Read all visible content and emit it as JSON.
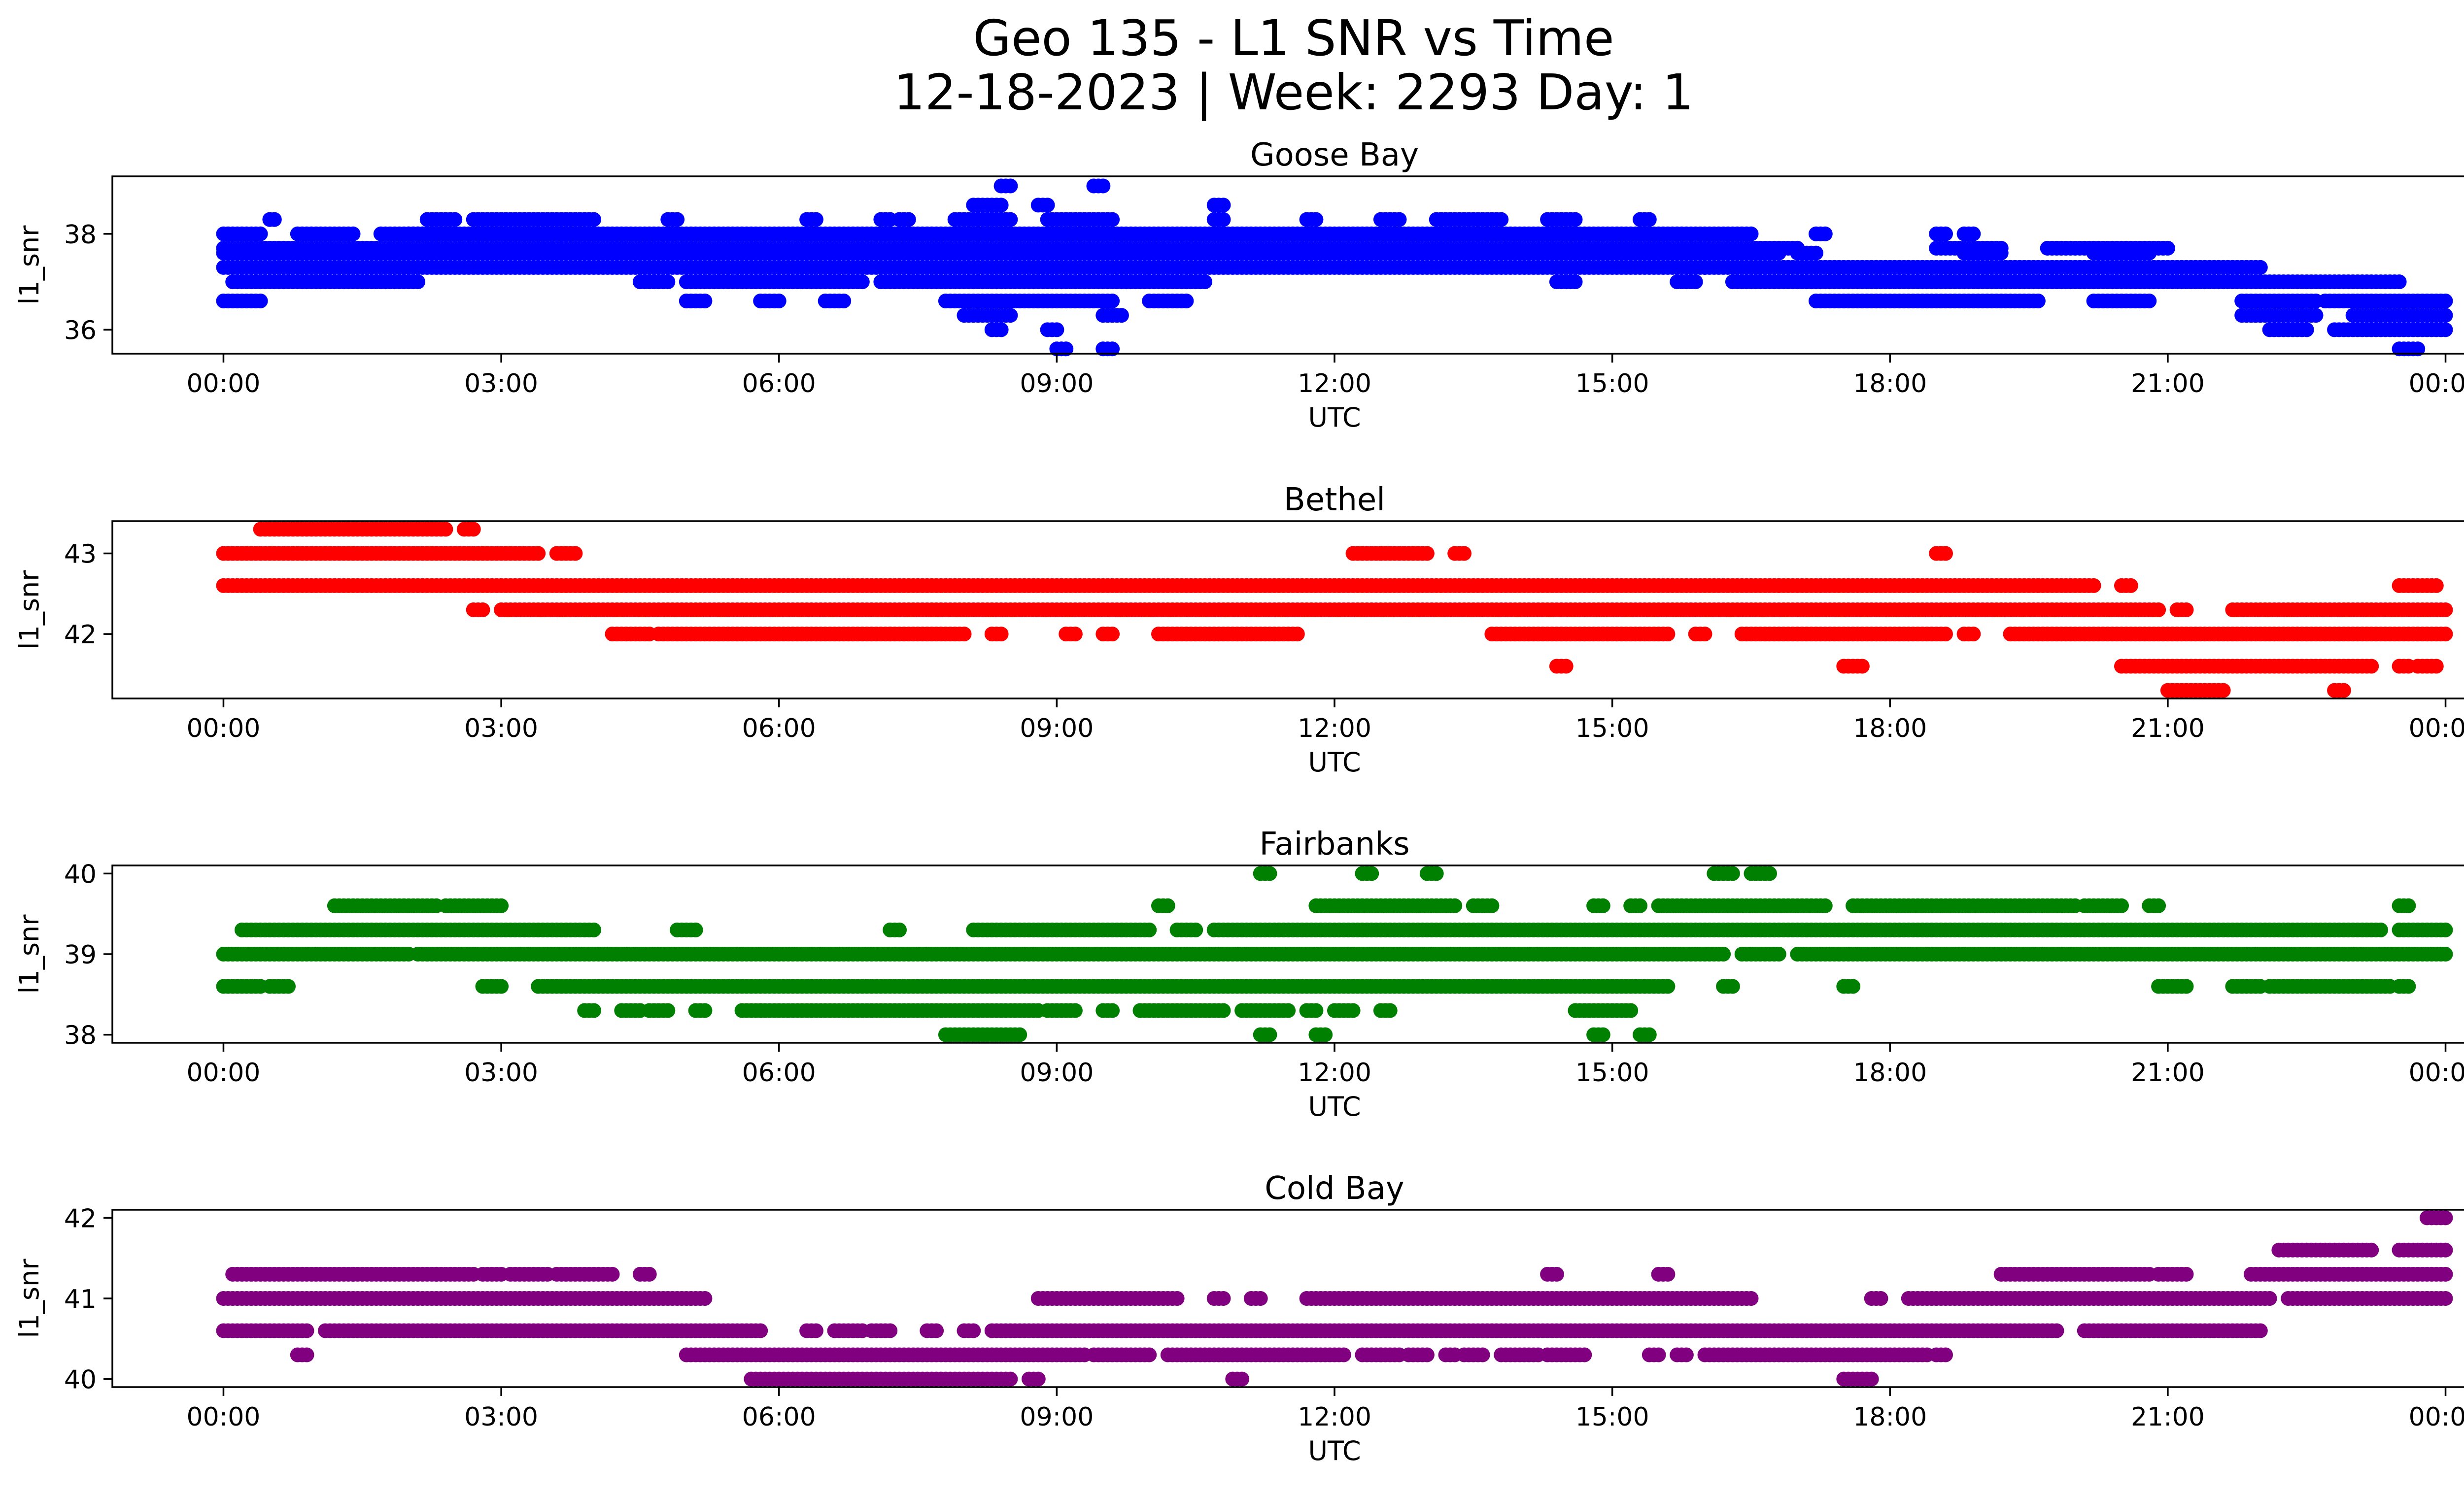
{
  "figure": {
    "title_line1": "Geo 135 - L1 SNR vs Time",
    "title_line2": "12-18-2023 | Week: 2293 Day: 1"
  },
  "chart_data": [
    {
      "type": "scatter",
      "title": "Goose Bay",
      "xlabel": "UTC",
      "ylabel": "l1_snr",
      "color": "#0000ff",
      "xlim": [
        -1.2,
        25.2
      ],
      "ylim": [
        35.5,
        39.2
      ],
      "xticks": [
        "00:00",
        "03:00",
        "06:00",
        "09:00",
        "12:00",
        "15:00",
        "18:00",
        "21:00",
        "00:00"
      ],
      "yticks": [
        36,
        38
      ],
      "bands": [
        {
          "y": 38.3,
          "ranges": [
            [
              0.5,
              0.55
            ],
            [
              2.2,
              2.5
            ],
            [
              2.7,
              4.0
            ],
            [
              4.8,
              4.9
            ],
            [
              6.3,
              6.4
            ],
            [
              7.1,
              7.2
            ],
            [
              7.3,
              7.4
            ],
            [
              7.9,
              8.5
            ],
            [
              8.9,
              9.6
            ],
            [
              10.7,
              10.8
            ],
            [
              11.7,
              11.8
            ],
            [
              12.5,
              12.7
            ],
            [
              13.1,
              13.8
            ],
            [
              14.3,
              14.6
            ],
            [
              15.3,
              15.4
            ]
          ]
        },
        {
          "y": 38.6,
          "ranges": [
            [
              8.1,
              8.4
            ],
            [
              8.8,
              8.9
            ],
            [
              10.7,
              10.8
            ]
          ]
        },
        {
          "y": 39.0,
          "ranges": [
            [
              8.4,
              8.5
            ],
            [
              9.4,
              9.5
            ]
          ]
        },
        {
          "y": 38.0,
          "ranges": [
            [
              0.0,
              0.4
            ],
            [
              0.8,
              1.4
            ],
            [
              1.7,
              2.2
            ],
            [
              2.0,
              16.5
            ],
            [
              17.2,
              17.3
            ],
            [
              18.5,
              18.6
            ],
            [
              18.8,
              18.9
            ]
          ]
        },
        {
          "y": 37.7,
          "ranges": [
            [
              0.0,
              17.0
            ],
            [
              18.5,
              19.2
            ],
            [
              19.7,
              21.0
            ]
          ]
        },
        {
          "y": 37.6,
          "ranges": [
            [
              0.0,
              16.8
            ],
            [
              17.0,
              17.2
            ],
            [
              18.8,
              19.2
            ],
            [
              20.2,
              20.8
            ]
          ]
        },
        {
          "y": 37.3,
          "ranges": [
            [
              0.0,
              16.0
            ],
            [
              16.0,
              19.2
            ],
            [
              19.2,
              22.0
            ]
          ]
        },
        {
          "y": 37.0,
          "ranges": [
            [
              0.1,
              2.1
            ],
            [
              4.5,
              4.8
            ],
            [
              5.0,
              6.9
            ],
            [
              7.1,
              10.6
            ],
            [
              14.4,
              14.6
            ],
            [
              15.7,
              15.9
            ],
            [
              16.3,
              23.5
            ]
          ]
        },
        {
          "y": 36.6,
          "ranges": [
            [
              0.0,
              0.4
            ],
            [
              5.0,
              5.2
            ],
            [
              5.8,
              6.0
            ],
            [
              6.5,
              6.7
            ],
            [
              7.8,
              9.6
            ],
            [
              10.0,
              10.4
            ],
            [
              17.2,
              19.6
            ],
            [
              20.2,
              20.8
            ],
            [
              21.8,
              22.6
            ],
            [
              22.7,
              24.0
            ]
          ]
        },
        {
          "y": 36.3,
          "ranges": [
            [
              8.0,
              8.5
            ],
            [
              9.5,
              9.7
            ],
            [
              21.8,
              22.6
            ],
            [
              23.0,
              24.0
            ]
          ]
        },
        {
          "y": 36.0,
          "ranges": [
            [
              8.3,
              8.4
            ],
            [
              8.9,
              9.0
            ],
            [
              22.1,
              22.5
            ],
            [
              22.8,
              24.0
            ]
          ]
        },
        {
          "y": 35.6,
          "ranges": [
            [
              9.0,
              9.1
            ],
            [
              9.5,
              9.6
            ],
            [
              23.5,
              23.7
            ]
          ]
        }
      ]
    },
    {
      "type": "scatter",
      "title": "Bethel",
      "xlabel": "UTC",
      "ylabel": "l1_snr",
      "color": "#ff0000",
      "xlim": [
        -1.2,
        25.2
      ],
      "ylim": [
        41.2,
        43.4
      ],
      "xticks": [
        "00:00",
        "03:00",
        "06:00",
        "09:00",
        "12:00",
        "15:00",
        "18:00",
        "21:00",
        "00:00"
      ],
      "yticks": [
        42,
        43
      ],
      "bands": [
        {
          "y": 43.3,
          "ranges": [
            [
              0.4,
              2.4
            ],
            [
              2.6,
              2.7
            ]
          ]
        },
        {
          "y": 43.0,
          "ranges": [
            [
              0.0,
              3.4
            ],
            [
              3.6,
              3.8
            ],
            [
              12.2,
              12.5
            ],
            [
              12.5,
              13.0
            ],
            [
              13.3,
              13.4
            ],
            [
              18.5,
              18.6
            ]
          ]
        },
        {
          "y": 42.6,
          "ranges": [
            [
              0.0,
              16.8
            ],
            [
              16.8,
              19.6
            ],
            [
              19.6,
              20.2
            ],
            [
              20.5,
              20.6
            ],
            [
              23.5,
              23.9
            ]
          ]
        },
        {
          "y": 42.3,
          "ranges": [
            [
              2.7,
              2.8
            ],
            [
              3.0,
              20.9
            ],
            [
              21.1,
              21.2
            ],
            [
              21.7,
              24.0
            ]
          ]
        },
        {
          "y": 42.0,
          "ranges": [
            [
              4.2,
              4.6
            ],
            [
              4.7,
              7.2
            ],
            [
              7.2,
              8.0
            ],
            [
              8.3,
              8.4
            ],
            [
              9.1,
              9.2
            ],
            [
              9.5,
              9.6
            ],
            [
              10.1,
              11.6
            ],
            [
              13.7,
              15.6
            ],
            [
              15.9,
              16.0
            ],
            [
              16.4,
              18.6
            ],
            [
              18.8,
              18.9
            ],
            [
              19.3,
              24.0
            ]
          ]
        },
        {
          "y": 41.6,
          "ranges": [
            [
              14.4,
              14.5
            ],
            [
              17.5,
              17.7
            ],
            [
              20.5,
              23.2
            ],
            [
              23.5,
              23.6
            ],
            [
              23.7,
              23.9
            ]
          ]
        },
        {
          "y": 41.3,
          "ranges": [
            [
              21.0,
              21.6
            ],
            [
              22.8,
              22.9
            ]
          ]
        }
      ]
    },
    {
      "type": "scatter",
      "title": "Fairbanks",
      "xlabel": "UTC",
      "ylabel": "l1_snr",
      "color": "#008000",
      "xlim": [
        -1.2,
        25.2
      ],
      "ylim": [
        37.9,
        40.1
      ],
      "xticks": [
        "00:00",
        "03:00",
        "06:00",
        "09:00",
        "12:00",
        "15:00",
        "18:00",
        "21:00",
        "00:00"
      ],
      "yticks": [
        38,
        39,
        40
      ],
      "bands": [
        {
          "y": 40.0,
          "ranges": [
            [
              11.2,
              11.3
            ],
            [
              12.3,
              12.4
            ],
            [
              13.0,
              13.1
            ],
            [
              16.1,
              16.3
            ],
            [
              16.5,
              16.7
            ]
          ]
        },
        {
          "y": 39.6,
          "ranges": [
            [
              1.2,
              2.3
            ],
            [
              2.4,
              3.0
            ],
            [
              10.1,
              10.2
            ],
            [
              11.8,
              13.3
            ],
            [
              13.5,
              13.7
            ],
            [
              14.8,
              14.9
            ],
            [
              15.2,
              15.3
            ],
            [
              15.5,
              17.3
            ],
            [
              17.6,
              20.0
            ],
            [
              20.1,
              20.5
            ],
            [
              20.8,
              20.9
            ],
            [
              23.5,
              23.6
            ]
          ]
        },
        {
          "y": 39.3,
          "ranges": [
            [
              0.2,
              4.0
            ],
            [
              4.9,
              5.1
            ],
            [
              7.2,
              7.3
            ],
            [
              8.1,
              10.0
            ],
            [
              10.3,
              10.5
            ],
            [
              10.7,
              23.3
            ],
            [
              23.5,
              24.0
            ]
          ]
        },
        {
          "y": 39.0,
          "ranges": [
            [
              0.0,
              2.0
            ],
            [
              2.1,
              2.2
            ],
            [
              2.2,
              16.2
            ],
            [
              16.4,
              16.8
            ],
            [
              17.0,
              24.0
            ]
          ]
        },
        {
          "y": 38.6,
          "ranges": [
            [
              0.0,
              0.4
            ],
            [
              0.5,
              0.7
            ],
            [
              2.8,
              3.0
            ],
            [
              3.4,
              15.6
            ],
            [
              16.2,
              16.3
            ],
            [
              17.5,
              17.6
            ],
            [
              20.9,
              21.2
            ],
            [
              21.7,
              22.0
            ],
            [
              22.1,
              23.4
            ],
            [
              23.5,
              23.6
            ]
          ]
        },
        {
          "y": 38.3,
          "ranges": [
            [
              3.9,
              4.0
            ],
            [
              4.3,
              4.5
            ],
            [
              4.6,
              4.8
            ],
            [
              5.1,
              5.2
            ],
            [
              5.6,
              5.8
            ],
            [
              5.8,
              8.8
            ],
            [
              8.9,
              9.2
            ],
            [
              9.5,
              9.6
            ],
            [
              9.9,
              10.8
            ],
            [
              11.0,
              11.5
            ],
            [
              11.7,
              11.8
            ],
            [
              12.0,
              12.2
            ],
            [
              12.5,
              12.6
            ],
            [
              14.6,
              15.2
            ]
          ]
        },
        {
          "y": 38.0,
          "ranges": [
            [
              7.8,
              8.6
            ],
            [
              11.2,
              11.3
            ],
            [
              11.8,
              11.9
            ],
            [
              14.8,
              14.9
            ],
            [
              15.3,
              15.4
            ]
          ]
        }
      ]
    },
    {
      "type": "scatter",
      "title": "Cold Bay",
      "xlabel": "UTC",
      "ylabel": "l1_snr",
      "color": "#800080",
      "xlim": [
        -1.2,
        25.2
      ],
      "ylim": [
        39.9,
        42.1
      ],
      "xticks": [
        "00:00",
        "03:00",
        "06:00",
        "09:00",
        "12:00",
        "15:00",
        "18:00",
        "21:00",
        "00:00"
      ],
      "yticks": [
        40,
        41,
        42
      ],
      "bands": [
        {
          "y": 42.0,
          "ranges": [
            [
              23.8,
              24.0
            ]
          ]
        },
        {
          "y": 41.6,
          "ranges": [
            [
              22.2,
              23.2
            ],
            [
              23.5,
              24.0
            ]
          ]
        },
        {
          "y": 41.3,
          "ranges": [
            [
              0.1,
              1.4
            ],
            [
              1.4,
              2.3
            ],
            [
              2.3,
              2.7
            ],
            [
              2.8,
              3.0
            ],
            [
              3.1,
              3.5
            ],
            [
              3.6,
              4.2
            ],
            [
              4.5,
              4.6
            ],
            [
              14.3,
              14.4
            ],
            [
              15.5,
              15.6
            ],
            [
              19.2,
              20.8
            ],
            [
              20.9,
              21.2
            ],
            [
              21.9,
              24.0
            ]
          ]
        },
        {
          "y": 41.0,
          "ranges": [
            [
              0.0,
              5.2
            ],
            [
              8.8,
              10.3
            ],
            [
              10.7,
              10.8
            ],
            [
              11.1,
              11.2
            ],
            [
              11.7,
              16.5
            ],
            [
              17.8,
              17.9
            ],
            [
              18.2,
              22.1
            ],
            [
              22.3,
              23.8
            ],
            [
              23.8,
              24.0
            ]
          ]
        },
        {
          "y": 40.6,
          "ranges": [
            [
              0.0,
              0.9
            ],
            [
              1.1,
              5.8
            ],
            [
              6.3,
              6.4
            ],
            [
              6.6,
              6.9
            ],
            [
              7.0,
              7.2
            ],
            [
              7.6,
              7.7
            ],
            [
              8.0,
              8.1
            ],
            [
              8.3,
              19.8
            ],
            [
              20.1,
              22.0
            ]
          ]
        },
        {
          "y": 40.3,
          "ranges": [
            [
              0.8,
              0.9
            ],
            [
              5.0,
              9.3
            ],
            [
              9.4,
              10.0
            ],
            [
              10.2,
              12.1
            ],
            [
              12.3,
              12.5
            ],
            [
              12.5,
              12.7
            ],
            [
              12.8,
              13.0
            ],
            [
              13.2,
              13.3
            ],
            [
              13.4,
              13.6
            ],
            [
              13.8,
              14.2
            ],
            [
              14.3,
              14.7
            ],
            [
              15.4,
              15.5
            ],
            [
              15.7,
              15.8
            ],
            [
              16.0,
              18.4
            ],
            [
              18.5,
              18.6
            ]
          ]
        },
        {
          "y": 40.0,
          "ranges": [
            [
              5.7,
              8.5
            ],
            [
              8.7,
              8.8
            ],
            [
              10.9,
              11.0
            ],
            [
              17.5,
              17.8
            ]
          ]
        }
      ]
    }
  ]
}
